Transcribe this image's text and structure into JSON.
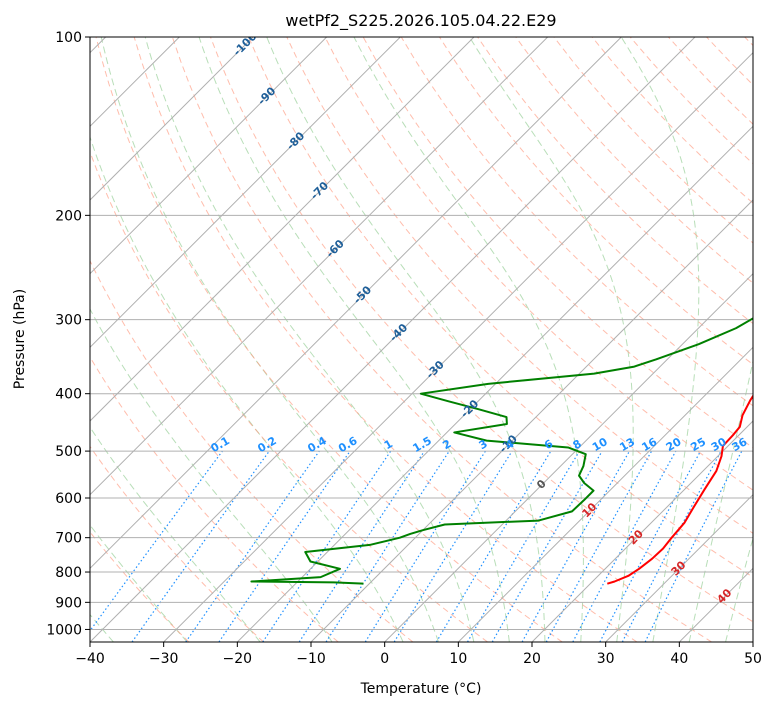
{
  "chart_data": {
    "type": "line",
    "subtype": "skew-t log-p diagram",
    "title": "wetPf2_S225.2026.105.04.22.E29",
    "xlabel": "Temperature (°C)",
    "ylabel": "Pressure (hPa)",
    "xlim": [
      -40,
      50
    ],
    "ylim": [
      1050,
      100
    ],
    "x_ticks": [
      -40,
      -30,
      -20,
      -10,
      0,
      10,
      20,
      30,
      40,
      50
    ],
    "y_ticks": [
      1000,
      900,
      800,
      700,
      600,
      500,
      400,
      300,
      200,
      100
    ],
    "x_tick_labels": [
      "−40",
      "−30",
      "−20",
      "−10",
      "0",
      "10",
      "20",
      "30",
      "40",
      "50"
    ],
    "y_tick_labels": [
      "1000",
      "900",
      "800",
      "700",
      "600",
      "500",
      "400",
      "300",
      "200",
      "100"
    ],
    "colors": {
      "temperature": "#ff0000",
      "dewpoint": "#008000",
      "isotherm_labels": "#1f5f99",
      "mixing_ratio": "#1e90ff",
      "moist_adiabat_labels": "#d62728",
      "dry_adiabat": "#ff9980",
      "moist_adiabat": "#88c888",
      "grid": "#b0b0b0"
    },
    "series": [
      {
        "name": "Temperature",
        "color": "#ff0000",
        "points": [
          [
            22.3,
            837
          ],
          [
            23.0,
            830
          ],
          [
            24.1,
            812
          ],
          [
            24.6,
            790
          ],
          [
            25.0,
            760
          ],
          [
            25.1,
            730
          ],
          [
            24.8,
            700
          ],
          [
            24.5,
            660
          ],
          [
            23.6,
            620
          ],
          [
            22.7,
            580
          ],
          [
            21.8,
            540
          ],
          [
            20.5,
            510
          ],
          [
            19.3,
            490
          ],
          [
            19.2,
            470
          ],
          [
            19.0,
            455
          ],
          [
            17.8,
            435
          ],
          [
            16.8,
            410
          ],
          [
            16.2,
            390
          ],
          [
            14.8,
            360
          ],
          [
            12.4,
            325
          ],
          [
            9.0,
            290
          ],
          [
            5.7,
            260
          ],
          [
            3.8,
            240
          ],
          [
            2.0,
            220
          ],
          [
            1.3,
            200
          ],
          [
            2.0,
            185
          ],
          [
            2.7,
            170
          ],
          [
            2.6,
            155
          ],
          [
            3.0,
            145
          ],
          [
            4.5,
            136
          ],
          [
            5.5,
            127
          ],
          [
            5.6,
            120
          ],
          [
            6.2,
            113
          ],
          [
            7.6,
            106
          ],
          [
            8.5,
            100
          ]
        ]
      },
      {
        "name": "Dewpoint",
        "color": "#008000",
        "points": [
          [
            -10.8,
            837
          ],
          [
            -15.0,
            833
          ],
          [
            -26.3,
            830
          ],
          [
            -17.5,
            816
          ],
          [
            -16.0,
            790
          ],
          [
            -21.0,
            768
          ],
          [
            -23.0,
            740
          ],
          [
            -15.2,
            720
          ],
          [
            -12.1,
            700
          ],
          [
            -11.2,
            690
          ],
          [
            -10.0,
            680
          ],
          [
            -7.8,
            665
          ],
          [
            4.4,
            655
          ],
          [
            7.7,
            632
          ],
          [
            7.8,
            605
          ],
          [
            7.8,
            583
          ],
          [
            5.5,
            566
          ],
          [
            3.8,
            550
          ],
          [
            3.1,
            530
          ],
          [
            1.8,
            506
          ],
          [
            -1.5,
            493
          ],
          [
            -13.5,
            480
          ],
          [
            -19.0,
            465
          ],
          [
            -13.0,
            450
          ],
          [
            -14.0,
            438
          ],
          [
            -18.8,
            425
          ],
          [
            -24.0,
            412
          ],
          [
            -28.8,
            400
          ],
          [
            -21.0,
            385
          ],
          [
            -8.0,
            370
          ],
          [
            -3.5,
            360
          ],
          [
            -1.5,
            350
          ],
          [
            2.2,
            330
          ],
          [
            5.1,
            310
          ],
          [
            6.8,
            290
          ],
          [
            6.3,
            265
          ],
          [
            5.0,
            250
          ],
          [
            2.9,
            235
          ],
          [
            -0.5,
            222
          ],
          [
            -1.8,
            210
          ],
          [
            -3.6,
            200
          ],
          [
            -7.0,
            190
          ],
          [
            -10.5,
            180
          ],
          [
            -13.0,
            168
          ],
          [
            -12.8,
            156
          ],
          [
            -12.8,
            145
          ],
          [
            -12.5,
            137
          ],
          [
            -12.0,
            130
          ],
          [
            -11.5,
            123
          ],
          [
            -11.0,
            117
          ],
          [
            -9.3,
            110
          ],
          [
            -5.9,
            105
          ],
          [
            -3.0,
            100
          ]
        ]
      }
    ],
    "isotherm_labels": [
      "-100",
      "-90",
      "-80",
      "-70",
      "-60",
      "-50",
      "-40",
      "-30",
      "-20",
      "-10",
      "0",
      "10",
      "20",
      "30",
      "40"
    ],
    "isotherm_label_values": [
      -100,
      -90,
      -80,
      -70,
      -60,
      -50,
      -40,
      -30,
      -20,
      -10,
      0,
      10,
      20,
      30,
      40
    ],
    "mixing_ratio_labels": [
      "0.1",
      "0.2",
      "0.4",
      "0.6",
      "1",
      "1.5",
      "2",
      "3",
      "4",
      "6",
      "8",
      "10",
      "13",
      "16",
      "20",
      "25",
      "30",
      "36"
    ],
    "mixing_ratio_values": [
      0.1,
      0.2,
      0.4,
      0.6,
      1,
      1.5,
      2,
      3,
      4,
      6,
      8,
      10,
      13,
      16,
      20,
      25,
      30,
      36
    ],
    "mixing_ratio_label_pressure": 500,
    "dry_adiabats_theta_c": [
      -30,
      -20,
      -10,
      0,
      10,
      20,
      30,
      40,
      50,
      60,
      70,
      80,
      90,
      100,
      110,
      120,
      130,
      140,
      150,
      160,
      170,
      180,
      190,
      200,
      210,
      220,
      230,
      240
    ],
    "moist_adiabats_c": [
      -40,
      -30,
      -20,
      -10,
      0,
      5,
      10,
      15,
      20,
      25,
      30,
      35,
      40,
      45
    ]
  }
}
